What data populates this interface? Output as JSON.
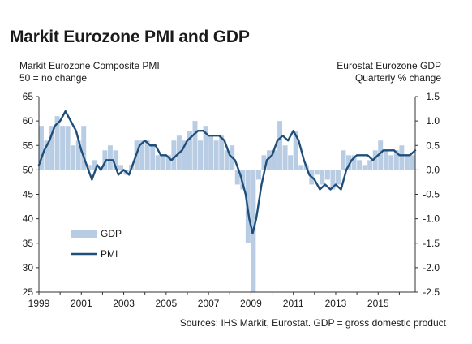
{
  "title": "Markit Eurozone PMI and GDP",
  "left_axis": {
    "label_line1": "Markit Eurozone Composite PMI",
    "label_line2": "50 = no change"
  },
  "right_axis": {
    "label_line1": "Eurostat Eurozone GDP",
    "label_line2": "Quarterly % change"
  },
  "source": "Sources: IHS Markit, Eurostat. GDP = gross domestic product",
  "colors": {
    "pmi_line": "#1f4e79",
    "gdp_bar": "#b8cce4"
  },
  "chart_data": {
    "type": "bar+line",
    "title": "Markit Eurozone PMI and GDP",
    "x_range": [
      1999.0,
      2016.75
    ],
    "x_ticks": [
      "1999",
      "2001",
      "2003",
      "2005",
      "2007",
      "2009",
      "2011",
      "2013",
      "2015"
    ],
    "left_axis": {
      "ylim": [
        25,
        65
      ],
      "ticks": [
        "65",
        "60",
        "55",
        "50",
        "45",
        "40",
        "35",
        "30",
        "25"
      ]
    },
    "right_axis": {
      "ylim": [
        -2.5,
        1.5
      ],
      "ticks": [
        "1.5",
        "1.0",
        "0.5",
        "0.0",
        "-0.5",
        "-1.0",
        "-1.5",
        "-2.0",
        "-2.5"
      ]
    },
    "legend": {
      "placement": "lower-left",
      "entries": [
        "GDP",
        "PMI"
      ]
    },
    "series": [
      {
        "name": "GDP",
        "type": "bar",
        "axis": "right",
        "x": [
          1999.0,
          1999.25,
          1999.5,
          1999.75,
          2000.0,
          2000.25,
          2000.5,
          2000.75,
          2001.0,
          2001.25,
          2001.5,
          2001.75,
          2002.0,
          2002.25,
          2002.5,
          2002.75,
          2003.0,
          2003.25,
          2003.5,
          2003.75,
          2004.0,
          2004.25,
          2004.5,
          2004.75,
          2005.0,
          2005.25,
          2005.5,
          2005.75,
          2006.0,
          2006.25,
          2006.5,
          2006.75,
          2007.0,
          2007.25,
          2007.5,
          2007.75,
          2008.0,
          2008.25,
          2008.5,
          2008.75,
          2009.0,
          2009.25,
          2009.5,
          2009.75,
          2010.0,
          2010.25,
          2010.5,
          2010.75,
          2011.0,
          2011.25,
          2011.5,
          2011.75,
          2012.0,
          2012.25,
          2012.5,
          2012.75,
          2013.0,
          2013.25,
          2013.5,
          2013.75,
          2014.0,
          2014.25,
          2014.5,
          2014.75,
          2015.0,
          2015.25,
          2015.5,
          2015.75,
          2016.0,
          2016.25,
          2016.5
        ],
        "values": [
          0.9,
          0.6,
          0.9,
          1.1,
          0.9,
          0.9,
          0.5,
          0.6,
          0.9,
          0.1,
          0.2,
          0.0,
          0.4,
          0.5,
          0.4,
          0.1,
          -0.1,
          0.1,
          0.6,
          0.6,
          0.6,
          0.5,
          0.3,
          0.3,
          0.3,
          0.6,
          0.7,
          0.6,
          0.8,
          1.0,
          0.6,
          0.9,
          0.7,
          0.6,
          0.7,
          0.4,
          0.5,
          -0.3,
          -0.4,
          -1.5,
          -2.5,
          -0.2,
          0.3,
          0.4,
          0.4,
          1.0,
          0.5,
          0.3,
          0.8,
          0.1,
          0.1,
          -0.3,
          -0.1,
          -0.3,
          -0.2,
          -0.4,
          -0.3,
          0.4,
          0.3,
          0.3,
          0.2,
          0.1,
          0.2,
          0.4,
          0.6,
          0.4,
          0.3,
          0.4,
          0.5,
          0.3,
          0.3
        ]
      },
      {
        "name": "PMI",
        "type": "line",
        "axis": "left",
        "x": [
          1999.0,
          1999.25,
          1999.5,
          1999.75,
          2000.0,
          2000.25,
          2000.5,
          2000.75,
          2001.0,
          2001.25,
          2001.5,
          2001.75,
          2001.92,
          2002.17,
          2002.5,
          2002.75,
          2003.0,
          2003.25,
          2003.5,
          2003.75,
          2004.0,
          2004.25,
          2004.5,
          2004.75,
          2005.0,
          2005.25,
          2005.5,
          2005.75,
          2006.0,
          2006.25,
          2006.5,
          2006.75,
          2007.0,
          2007.25,
          2007.5,
          2007.75,
          2008.0,
          2008.25,
          2008.5,
          2008.75,
          2008.92,
          2009.08,
          2009.25,
          2009.5,
          2009.75,
          2010.0,
          2010.25,
          2010.5,
          2010.75,
          2011.0,
          2011.25,
          2011.5,
          2011.75,
          2012.0,
          2012.25,
          2012.5,
          2012.75,
          2013.0,
          2013.25,
          2013.5,
          2013.75,
          2014.0,
          2014.25,
          2014.5,
          2014.75,
          2015.0,
          2015.25,
          2015.5,
          2015.75,
          2016.0,
          2016.25,
          2016.5,
          2016.75
        ],
        "values": [
          51,
          54,
          56,
          59,
          60,
          62,
          60,
          58,
          54,
          51,
          48,
          51,
          50,
          52,
          52,
          49,
          50,
          49,
          52,
          55,
          56,
          55,
          55,
          53,
          53,
          52,
          53,
          54,
          56,
          57,
          58,
          58,
          57,
          57,
          57,
          56,
          53,
          52,
          49,
          45,
          40,
          37,
          40,
          47,
          52,
          53,
          56,
          57,
          56,
          58,
          56,
          52,
          49,
          48,
          46,
          47,
          46,
          47,
          46,
          50,
          52,
          53,
          53,
          53,
          52,
          53,
          54,
          54,
          54,
          53,
          53,
          53,
          54
        ]
      }
    ]
  }
}
